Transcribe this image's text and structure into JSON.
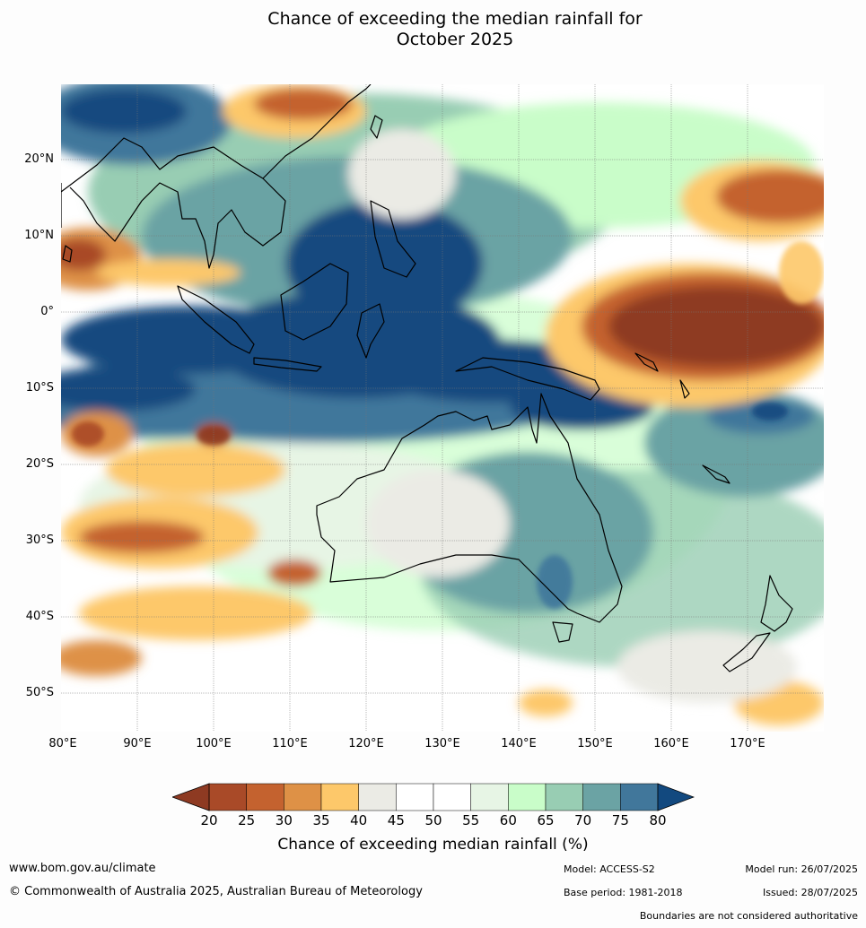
{
  "title_line1": "Chance of exceeding the median rainfall for",
  "title_line2": "October 2025",
  "lat_ticks": [
    "20°N",
    "10°N",
    "0°",
    "10°S",
    "20°S",
    "30°S",
    "40°S",
    "50°S"
  ],
  "lon_ticks": [
    "80°E",
    "90°E",
    "100°E",
    "110°E",
    "120°E",
    "130°E",
    "140°E",
    "150°E",
    "160°E",
    "170°E"
  ],
  "colorbar": {
    "label": "Chance of exceeding median rainfall (%)",
    "ticks": [
      "20",
      "25",
      "30",
      "35",
      "40",
      "45",
      "50",
      "55",
      "60",
      "65",
      "70",
      "75",
      "80"
    ],
    "low_color": "#8e3a22",
    "high_color": "#12497f",
    "colors": [
      "#a94a28",
      "#c4622f",
      "#de9146",
      "#fdc86a",
      "#ebebe5",
      "#ffffff",
      "#ffffff",
      "#e7f5e5",
      "#c9fdc9",
      "#98cdb3",
      "#6ba3a4",
      "#41779b"
    ]
  },
  "footer": {
    "url": "www.bom.gov.au/climate",
    "copyright": "© Commonwealth of Australia 2025, Australian Bureau of Meteorology",
    "model": "Model: ACCESS-S2",
    "model_run": "Model run: 26/07/2025",
    "base_period": "Base period: 1981-2018",
    "issued": "Issued: 28/07/2025",
    "disclaimer": "Boundaries are not considered authoritative"
  }
}
